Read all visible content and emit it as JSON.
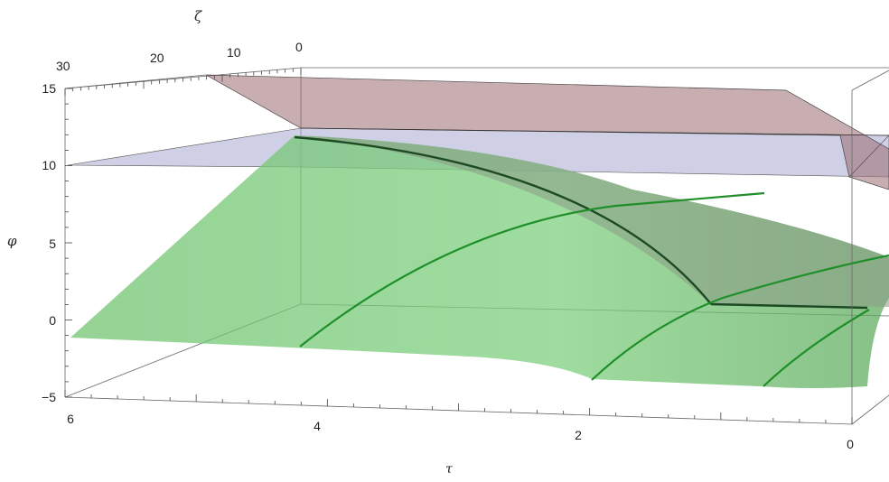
{
  "chart_data": {
    "type": "surface3d",
    "axes": {
      "zeta": {
        "label": "ζ",
        "ticks": [
          "30",
          "20",
          "10",
          "0"
        ],
        "range": [
          30,
          0
        ]
      },
      "phi": {
        "label": "φ",
        "ticks": [
          "15",
          "10",
          "5",
          "0",
          "−5"
        ],
        "range": [
          -5,
          15
        ]
      },
      "tau": {
        "label": "τ",
        "ticks": [
          "6",
          "4",
          "2",
          "0"
        ],
        "range": [
          6,
          0
        ]
      }
    },
    "surfaces": [
      {
        "name": "",
        "color": "#9b6b6f",
        "opacity": 0.55
      },
      {
        "name": "",
        "color": "#a8a8cc",
        "opacity": 0.55
      },
      {
        "name": "",
        "color": "#5cb85c",
        "opacity": 0.6
      }
    ],
    "curve_color_dark": "#1c4a22",
    "curve_color_green": "#1f8f2a",
    "box": true,
    "grid": false
  }
}
